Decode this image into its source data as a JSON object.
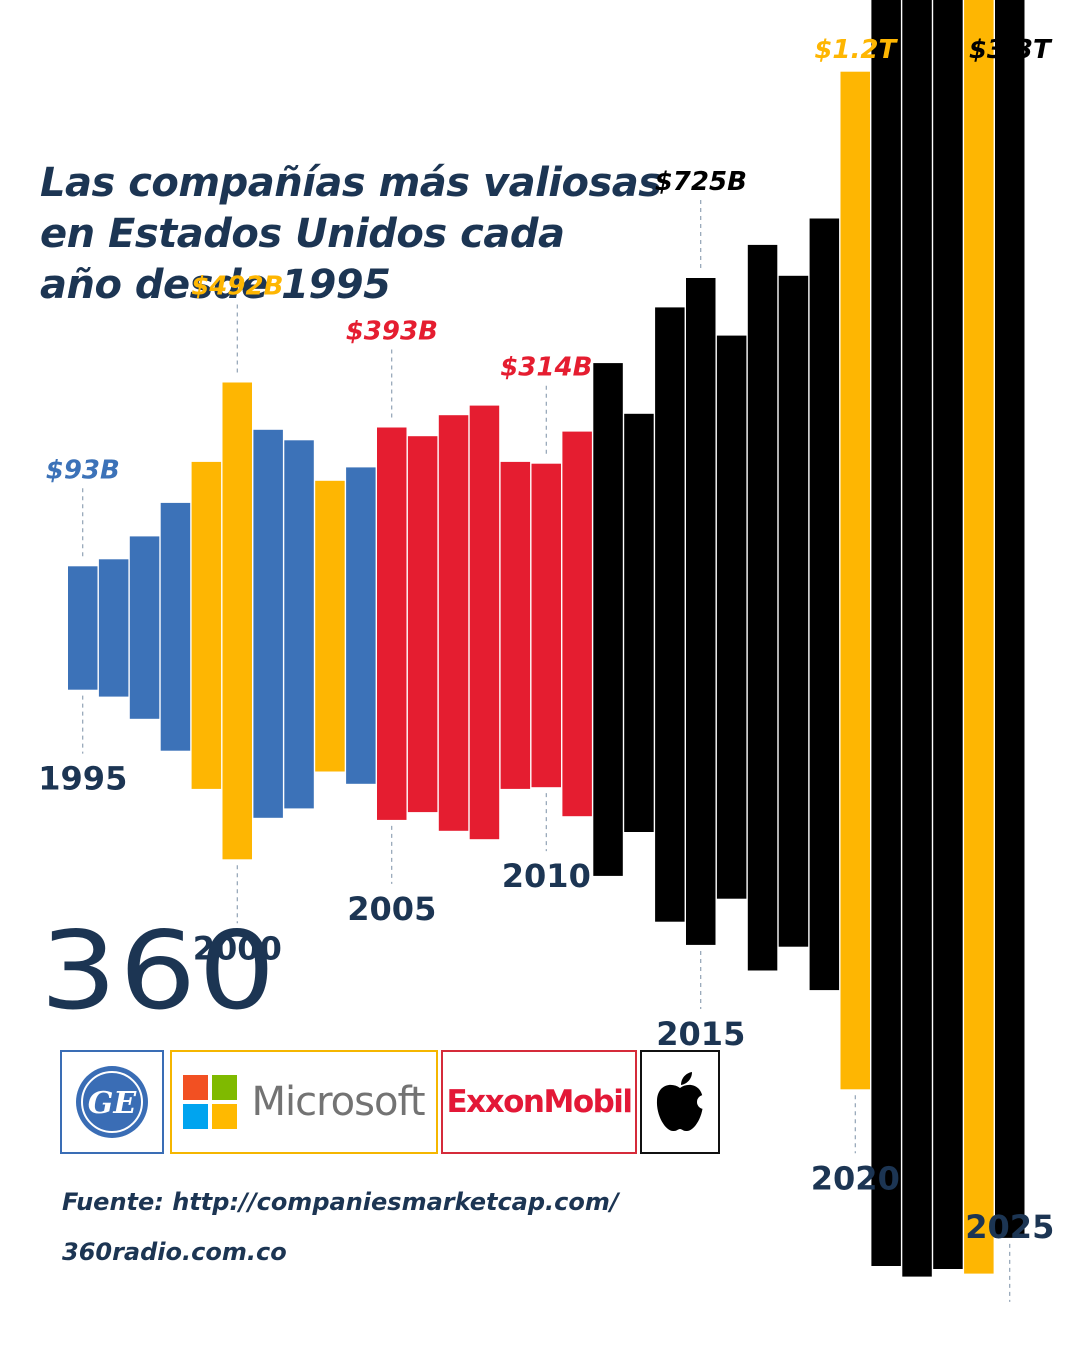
{
  "title_lines": [
    "Las compañías más valiosas",
    "en Estados Unidos cada",
    "año desde 1995"
  ],
  "chart_data": {
    "type": "bar",
    "title": "Las compañías más valiosas en Estados Unidos cada año desde 1995",
    "unit": "USD billions (market cap)",
    "categories": [
      1995,
      1996,
      1997,
      1998,
      1999,
      2000,
      2001,
      2002,
      2003,
      2004,
      2005,
      2006,
      2007,
      2008,
      2009,
      2010,
      2011,
      2012,
      2013,
      2014,
      2015,
      2016,
      2017,
      2018,
      2019,
      2020,
      2021,
      2022,
      2023,
      2024,
      2025
    ],
    "values": [
      93,
      108,
      157,
      229,
      318,
      492,
      388,
      365,
      277,
      306,
      393,
      374,
      420,
      441,
      318,
      314,
      384,
      535,
      423,
      659,
      725,
      596,
      800,
      730,
      860,
      1200,
      2290,
      2560,
      2340,
      2840,
      3300
    ],
    "companies": [
      "GE",
      "GE",
      "GE",
      "GE",
      "Microsoft",
      "Microsoft",
      "GE",
      "GE",
      "Microsoft",
      "GE",
      "ExxonMobil",
      "ExxonMobil",
      "ExxonMobil",
      "ExxonMobil",
      "ExxonMobil",
      "ExxonMobil",
      "ExxonMobil",
      "Apple",
      "Apple",
      "Apple",
      "Apple",
      "Apple",
      "Apple",
      "Apple",
      "Apple",
      "Microsoft",
      "Apple",
      "Apple",
      "Apple",
      "Microsoft",
      "Apple"
    ],
    "company_colors": {
      "GE": "#3c72b8",
      "Microsoft": "#feb602",
      "ExxonMobil": "#e51d30",
      "Apple": "#000000"
    },
    "value_labels": [
      {
        "year": 1995,
        "text": "$93B",
        "color": "#3c72b8"
      },
      {
        "year": 2000,
        "text": "$492B",
        "color": "#feb602"
      },
      {
        "year": 2005,
        "text": "$393B",
        "color": "#e51d30"
      },
      {
        "year": 2010,
        "text": "$314B",
        "color": "#e51d30"
      },
      {
        "year": 2015,
        "text": "$725B",
        "color": "#000000"
      },
      {
        "year": 2020,
        "text": "$1.2T",
        "color": "#feb602"
      },
      {
        "year": 2025,
        "text": "$3.3T",
        "color": "#000000"
      }
    ],
    "year_labels": [
      1995,
      2000,
      2005,
      2010,
      2015,
      2020,
      2025
    ]
  },
  "brand": {
    "logo_text": "360",
    "companies": [
      {
        "name": "GE",
        "logo_text": "GE",
        "border_color": "#3a6db5"
      },
      {
        "name": "Microsoft",
        "logo_text": "Microsoft",
        "border_color": "#f5b600"
      },
      {
        "name": "ExxonMobil",
        "logo_text": "ExxonMobil",
        "border_color": "#d52b3a"
      },
      {
        "name": "Apple",
        "logo_text": "",
        "border_color": "#111111"
      }
    ]
  },
  "footer": {
    "source": "Fuente: http://companiesmarketcap.com/",
    "site": "360radio.com.co"
  }
}
